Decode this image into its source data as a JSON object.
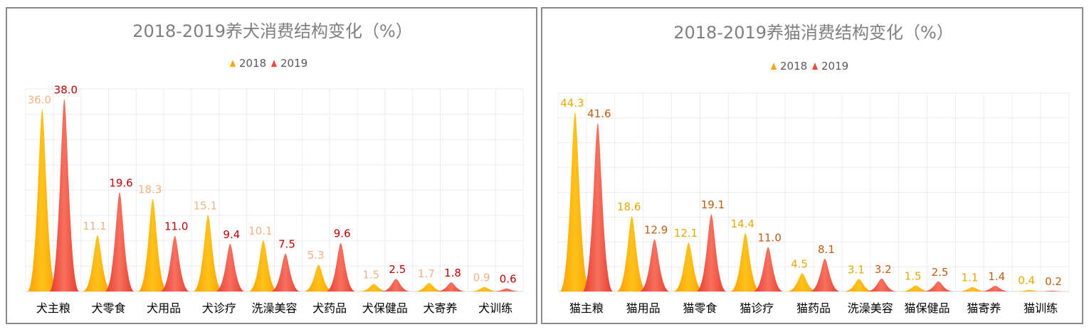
{
  "chart_data": [
    {
      "type": "bar",
      "title": "2018-2019养犬消费结构变化（%）",
      "categories": [
        "犬主粮",
        "犬零食",
        "犬用品",
        "犬诊疗",
        "洗澡美容",
        "犬药品",
        "犬保健品",
        "犬寄养",
        "犬训练"
      ],
      "series": [
        {
          "name": "2018",
          "values": [
            36.0,
            11.1,
            18.3,
            15.1,
            10.1,
            5.3,
            1.5,
            1.7,
            0.9
          ],
          "color": "#ffa500",
          "label_color": "#f4b183"
        },
        {
          "name": "2019",
          "values": [
            38.0,
            19.6,
            11.0,
            9.4,
            7.5,
            9.6,
            2.5,
            1.8,
            0.6
          ],
          "color": "#ef4b3a",
          "label_color": "#c00000"
        }
      ],
      "value_labels": [
        [
          "36.0",
          "11.1",
          "18.3",
          "15.1",
          "10.1",
          "5.3",
          "1.5",
          "1.7",
          "0.9"
        ],
        [
          "38.0",
          "19.6",
          "11.0",
          "9.4",
          "7.5",
          "9.6",
          "2.5",
          "1.8",
          "0.6"
        ]
      ],
      "ylim": [
        0,
        40
      ],
      "grid": true,
      "legend": "top-center"
    },
    {
      "type": "bar",
      "title": "2018-2019养猫消费结构变化（%）",
      "categories": [
        "猫主粮",
        "猫用品",
        "猫零食",
        "猫诊疗",
        "猫药品",
        "洗澡美容",
        "猫保健品",
        "猫寄养",
        "猫训练"
      ],
      "series": [
        {
          "name": "2018",
          "values": [
            44.3,
            18.6,
            12.1,
            14.4,
            4.5,
            3.1,
            1.5,
            1.1,
            0.4
          ],
          "color": "#ffa500",
          "label_color": "#e6a800"
        },
        {
          "name": "2019",
          "values": [
            41.6,
            12.9,
            19.1,
            11.0,
            8.1,
            3.2,
            2.5,
            1.4,
            0.2
          ],
          "color": "#ef4b3a",
          "label_color": "#c55a11"
        }
      ],
      "value_labels": [
        [
          "44.3",
          "18.6",
          "12.1",
          "14.4",
          "4.5",
          "3.1",
          "1.5",
          "1.1",
          "0.4"
        ],
        [
          "41.6",
          "12.9",
          "19.1",
          "11.0",
          "8.1",
          "3.2",
          "2.5",
          "1.4",
          "0.2"
        ]
      ],
      "ylim": [
        0,
        49
      ],
      "grid": true,
      "legend": "top-center"
    }
  ]
}
